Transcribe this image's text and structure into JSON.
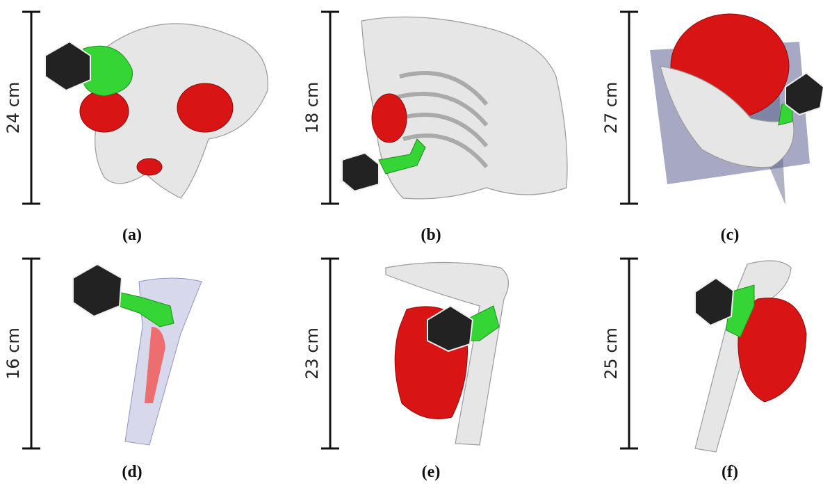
{
  "panels": [
    {
      "scale": "24 cm",
      "label": "(a)"
    },
    {
      "scale": "18 cm",
      "label": "(b)"
    },
    {
      "scale": "27 cm",
      "label": "(c)"
    },
    {
      "scale": "16 cm",
      "label": "(d)"
    },
    {
      "scale": "23 cm",
      "label": "(e)"
    },
    {
      "scale": "25 cm",
      "label": "(f)"
    }
  ]
}
